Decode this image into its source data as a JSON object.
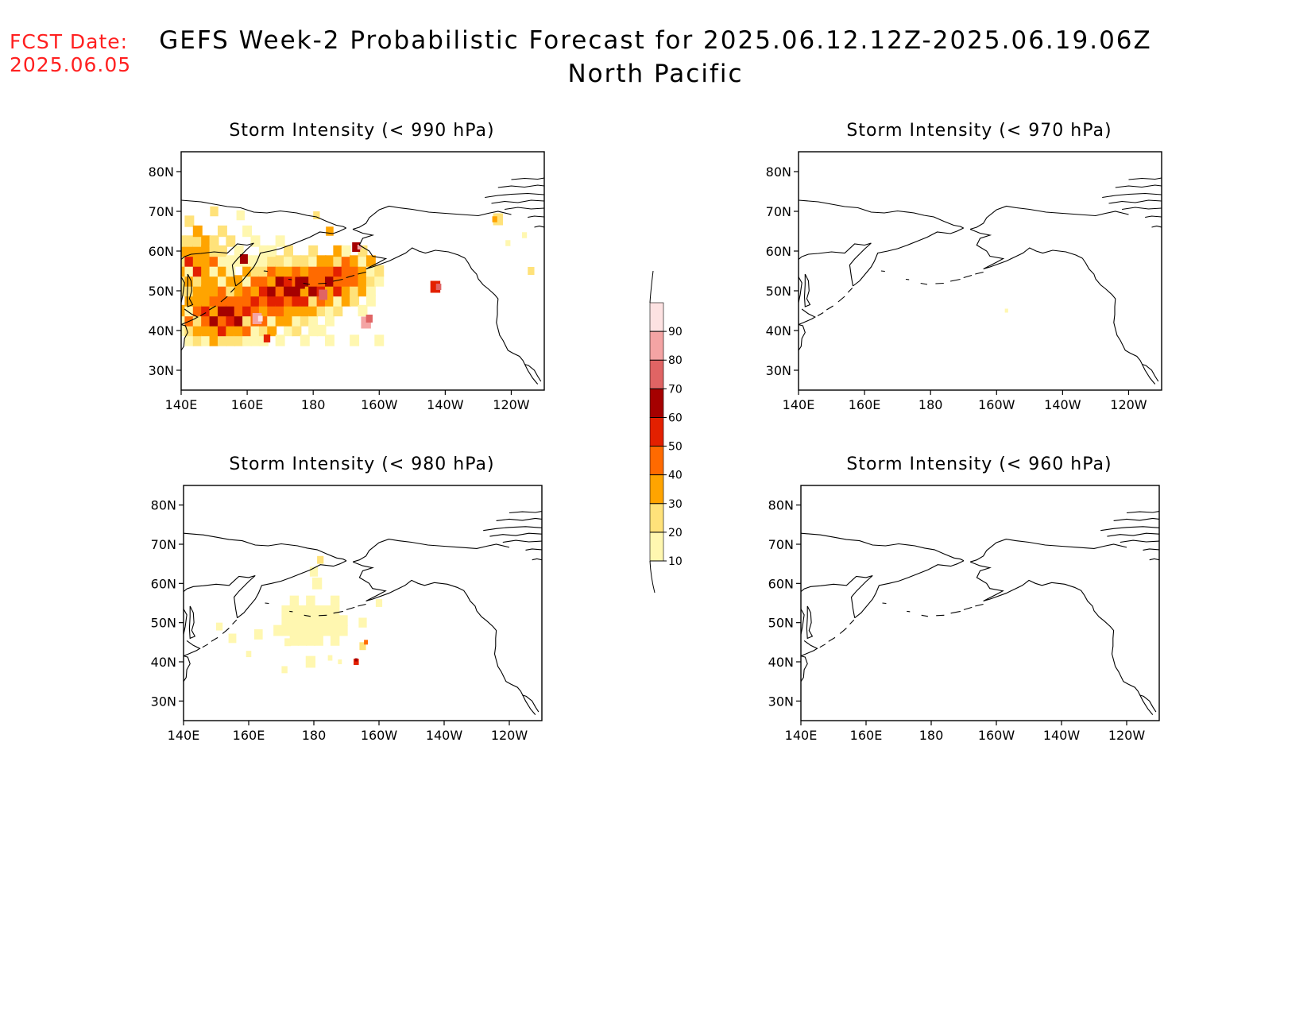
{
  "header": {
    "fcst_label": "FCST Date:",
    "fcst_date": "2025.06.05",
    "title_line1": "GEFS Week-2 Probabilistic Forecast for 2025.06.12.12Z-2025.06.19.06Z",
    "title_line2": "North Pacific"
  },
  "panels": [
    {
      "id": "p990",
      "title": "Storm Intensity (< 990 hPa)"
    },
    {
      "id": "p970",
      "title": "Storm Intensity (< 970 hPa)"
    },
    {
      "id": "p980",
      "title": "Storm Intensity (< 980 hPa)"
    },
    {
      "id": "p960",
      "title": "Storm Intensity (< 960 hPa)"
    }
  ],
  "axes": {
    "lat_labels": [
      "80N",
      "70N",
      "60N",
      "50N",
      "40N",
      "30N"
    ],
    "lon_labels": [
      "140E",
      "160E",
      "180",
      "160W",
      "140W",
      "120W"
    ],
    "lat_range": [
      25,
      85
    ],
    "lon_range_deg_east": [
      140,
      250
    ]
  },
  "colorbar": {
    "levels": [
      "10",
      "20",
      "30",
      "40",
      "50",
      "60",
      "70",
      "80",
      "90"
    ],
    "colors": [
      "#fff7b0",
      "#ffe27a",
      "#ffa400",
      "#ff6a00",
      "#e32000",
      "#a50000",
      "#e06464",
      "#f4a4a4",
      "#fde2e2"
    ]
  }
}
